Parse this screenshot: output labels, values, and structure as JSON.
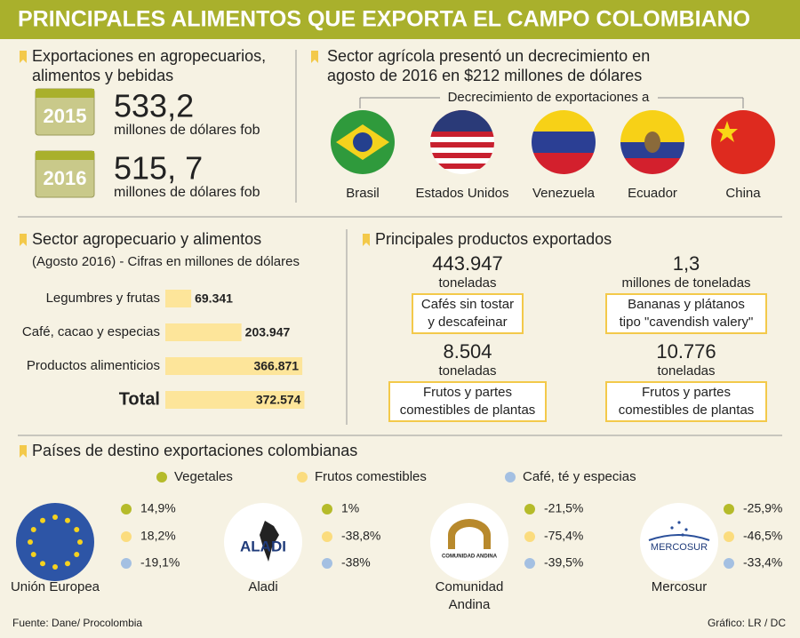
{
  "title": "PRINCIPALES ALIMENTOS QUE EXPORTA EL CAMPO COLOMBIANO",
  "exports": {
    "heading": [
      "Exportaciones en agropecuarios,",
      "alimentos y bebidas"
    ],
    "items": [
      {
        "year": "2015",
        "value": "533,2",
        "unit": "millones de dólares fob"
      },
      {
        "year": "2016",
        "value": "515, 7",
        "unit": "millones de dólares fob"
      }
    ]
  },
  "decline": {
    "heading": [
      "Sector agrícola presentó un decrecimiento en",
      "agosto de 2016 en $212 millones de dólares"
    ],
    "subheading": "Decrecimiento de exportaciones a",
    "countries": [
      "Brasil",
      "Estados Unidos",
      "Venezuela",
      "Ecuador",
      "China"
    ]
  },
  "chart_data": {
    "type": "bar",
    "orientation": "horizontal",
    "title": "Sector agropecuario y alimentos",
    "subtitle": "(Agosto 2016) - Cifras en millones de dólares",
    "categories": [
      "Legumbres y frutas",
      "Café, cacao y especias",
      "Productos alimenticios",
      "Total"
    ],
    "values": [
      69.341,
      203.947,
      366.871,
      372.574
    ],
    "color": "#fde59a"
  },
  "products": {
    "heading": "Principales productos exportados",
    "items": [
      {
        "amount": "443.947",
        "unit": "toneladas",
        "label": [
          "Cafés sin tostar",
          "y descafeinar"
        ]
      },
      {
        "amount": "1,3",
        "unit": "millones de toneladas",
        "label": [
          "Bananas y plátanos",
          "tipo \"cavendish valery\""
        ]
      },
      {
        "amount": "8.504",
        "unit": "toneladas",
        "label": [
          "Frutos y partes",
          "comestibles de plantas"
        ]
      },
      {
        "amount": "10.776",
        "unit": "toneladas",
        "label": [
          "Frutos y partes",
          "comestibles de plantas"
        ]
      }
    ]
  },
  "destinations": {
    "heading": "Países de destino exportaciones colombianas",
    "legend": [
      {
        "name": "Vegetales",
        "color": "#b5bb2a"
      },
      {
        "name": "Frutos comestibles",
        "color": "#fbdc7e"
      },
      {
        "name": "Café, té y especias",
        "color": "#a4c0e2"
      }
    ],
    "blocs": [
      {
        "name": [
          "Unión Europea"
        ],
        "logo": "",
        "values": [
          "14,9%",
          "18,2%",
          "-19,1%"
        ]
      },
      {
        "name": [
          "Aladi"
        ],
        "logo": "ALADI",
        "values": [
          "1%",
          "-38,8%",
          "-38%"
        ]
      },
      {
        "name": [
          "Comunidad",
          "Andina"
        ],
        "logo": "COMUNIDAD ANDINA",
        "values": [
          "-21,5%",
          "-75,4%",
          "-39,5%"
        ]
      },
      {
        "name": [
          "Mercosur"
        ],
        "logo": "MERCOSUR",
        "values": [
          "-25,9%",
          "-46,5%",
          "-33,4%"
        ]
      }
    ]
  },
  "footer": {
    "source": "Fuente: Dane/ Procolombia",
    "credit": "Gráfico: LR / DC"
  }
}
